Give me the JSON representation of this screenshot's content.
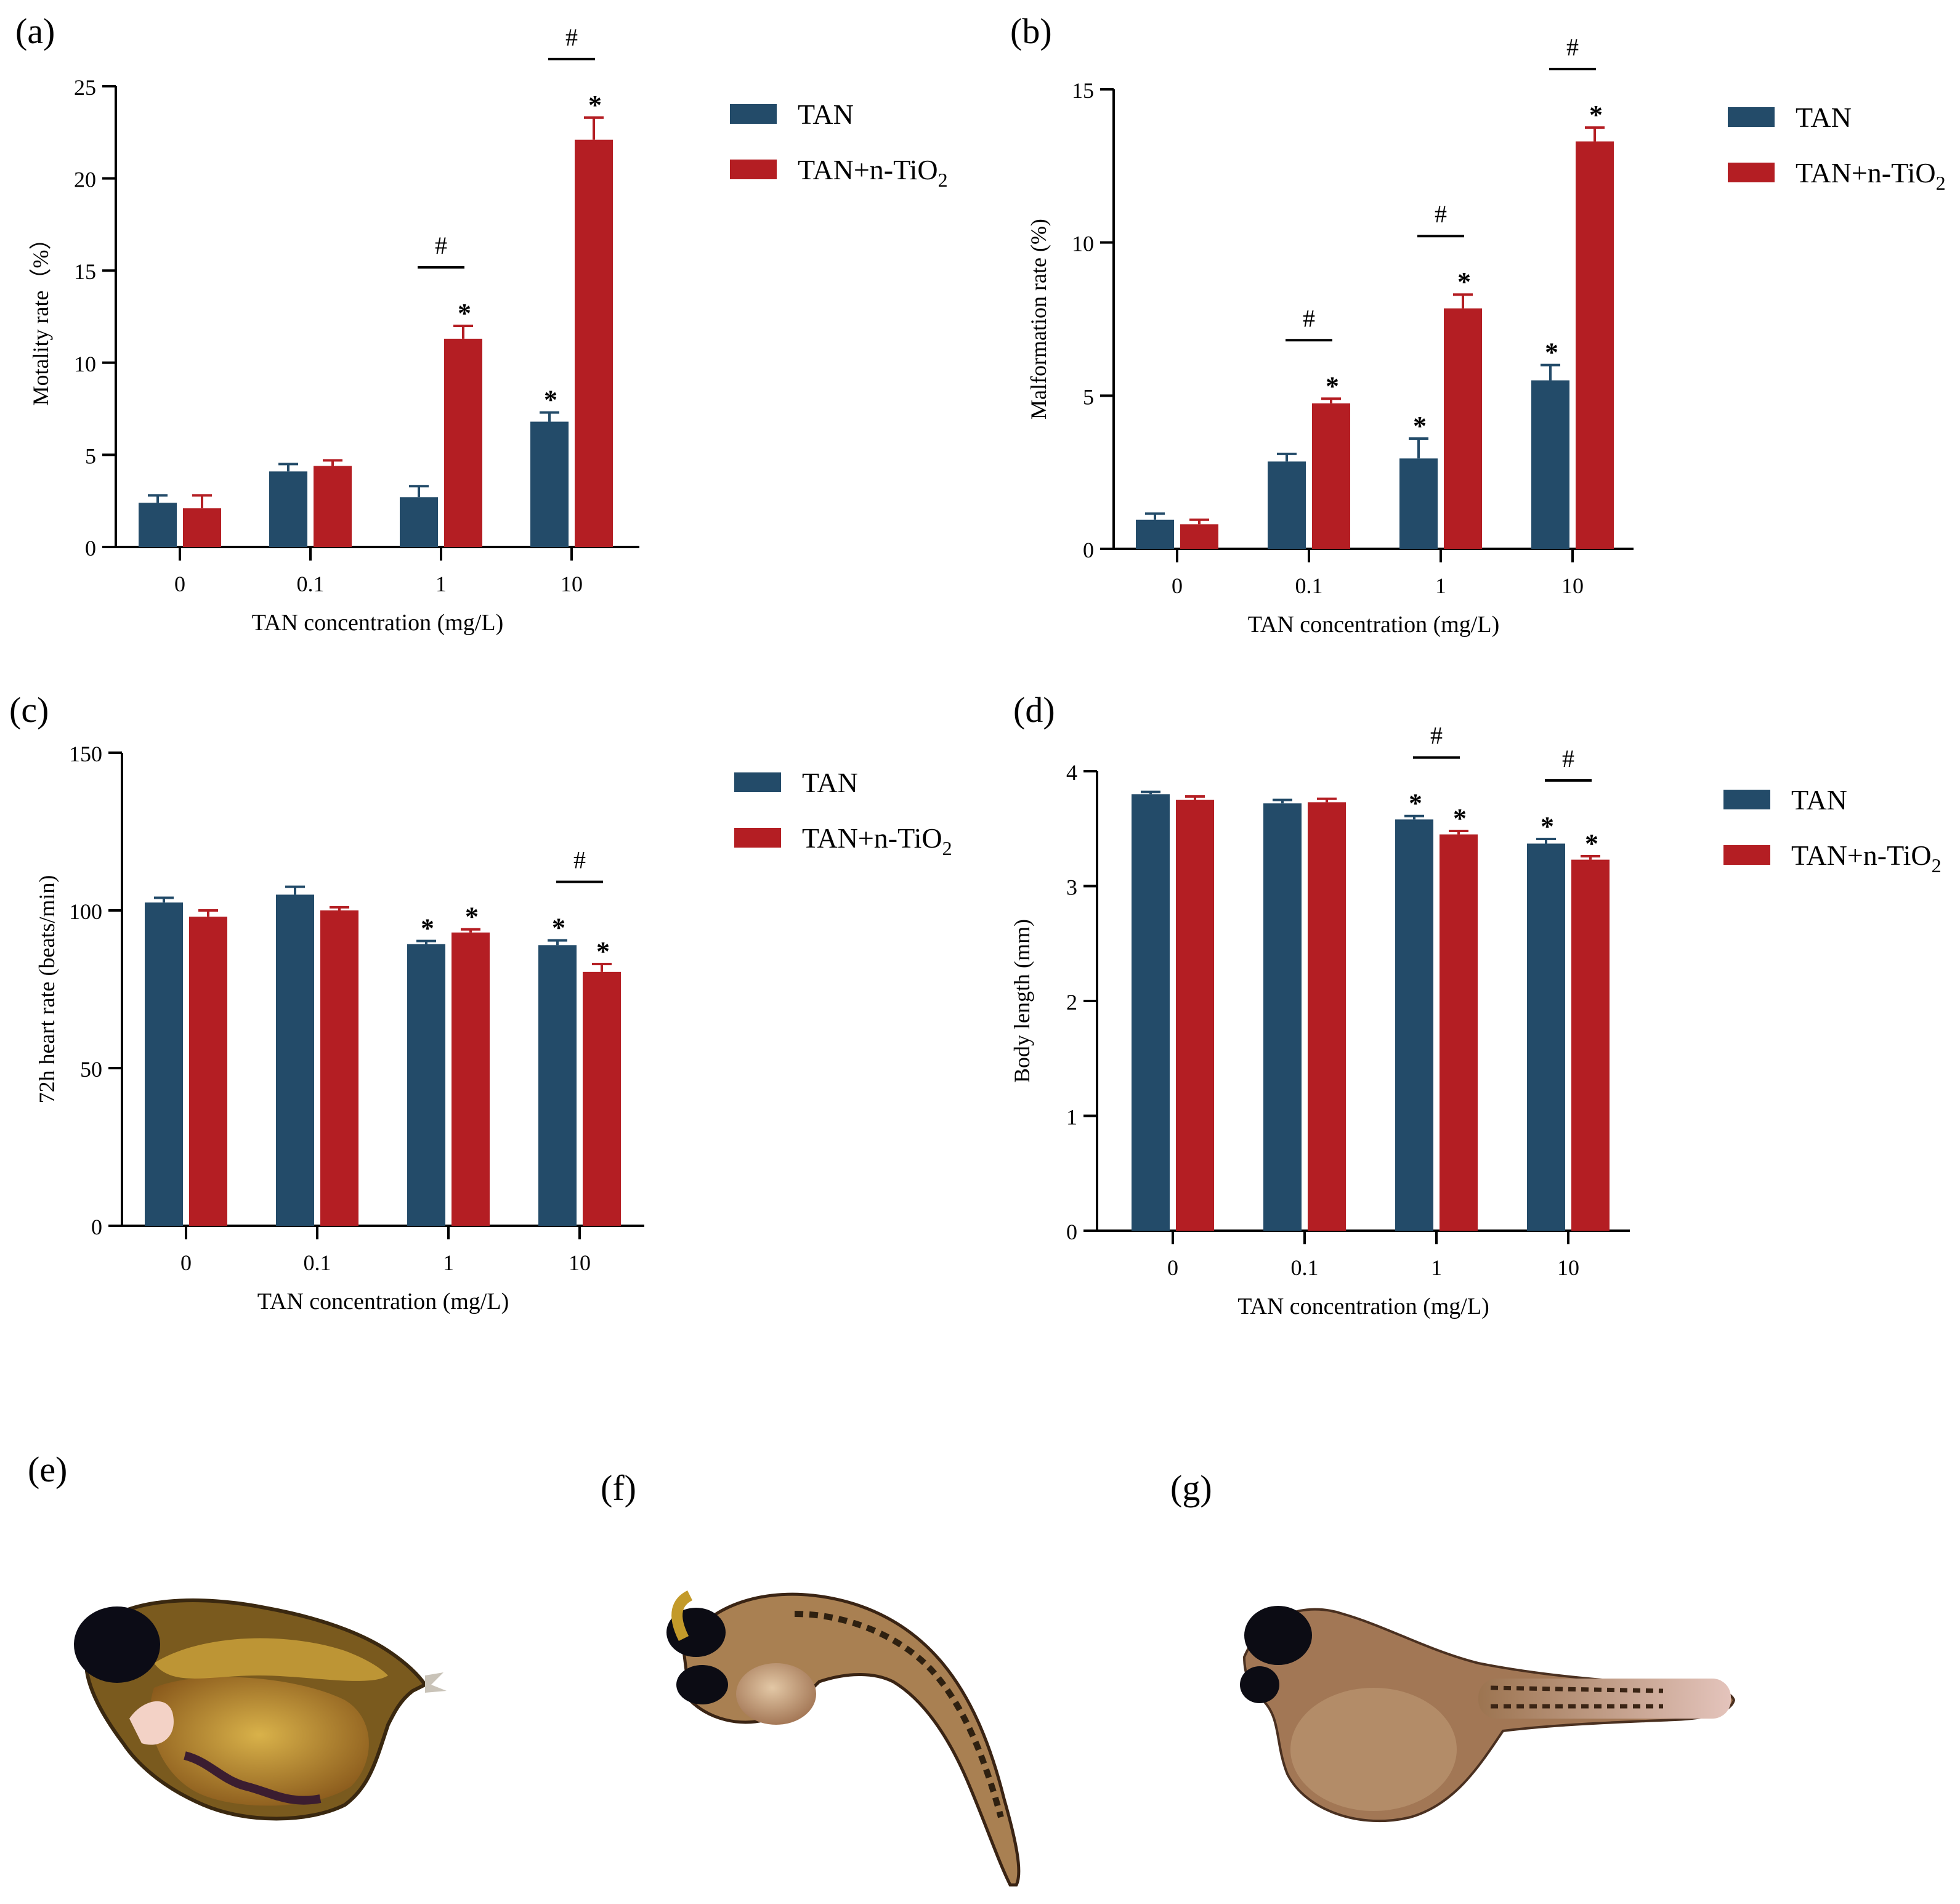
{
  "figure": {
    "colors": {
      "tan": "#234b69",
      "tan_tio2": "#b41e23",
      "axis": "#000000"
    },
    "photo_labels": [
      "(e)",
      "(f)",
      "(g)"
    ]
  },
  "chart_data": [
    {
      "panel": "(a)",
      "type": "bar",
      "xlabel": "TAN concentration (mg/L)",
      "ylabel": "Motality rate（%）",
      "ylim": [
        0,
        25
      ],
      "yticks": [
        "0",
        "5",
        "10",
        "15",
        "20",
        "25"
      ],
      "categories": [
        "0",
        "0.1",
        "1",
        "10"
      ],
      "legend": {
        "entries": [
          "TAN",
          "TAN+n-TiO",
          "2"
        ]
      },
      "series": [
        {
          "name": "TAN",
          "values": [
            2.4,
            4.1,
            2.7,
            6.8
          ],
          "errors": [
            0.4,
            0.4,
            0.6,
            0.5
          ],
          "star": [
            false,
            false,
            false,
            true
          ]
        },
        {
          "name": "TAN+n-TiO2",
          "values": [
            2.1,
            4.4,
            11.3,
            22.1
          ],
          "errors": [
            0.7,
            0.3,
            0.7,
            1.2
          ],
          "star": [
            false,
            false,
            true,
            true
          ]
        }
      ],
      "significance": {
        "symbol": "#",
        "categories": [
          2,
          3
        ]
      },
      "star_symbol": "*"
    },
    {
      "panel": "(b)",
      "type": "bar",
      "xlabel": "TAN concentration (mg/L)",
      "ylabel": "Malformation rate (%)",
      "ylim": [
        0,
        15
      ],
      "yticks": [
        "0",
        "5",
        "10",
        "15"
      ],
      "categories": [
        "0",
        "0.1",
        "1",
        "10"
      ],
      "legend": {
        "entries": [
          "TAN",
          "TAN+n-TiO",
          "2"
        ]
      },
      "series": [
        {
          "name": "TAN",
          "values": [
            0.95,
            2.85,
            2.95,
            5.5
          ],
          "errors": [
            0.2,
            0.25,
            0.65,
            0.5
          ],
          "star": [
            false,
            false,
            true,
            true
          ]
        },
        {
          "name": "TAN+n-TiO2",
          "values": [
            0.8,
            4.75,
            7.85,
            13.3
          ],
          "errors": [
            0.15,
            0.15,
            0.45,
            0.45
          ],
          "star": [
            false,
            true,
            true,
            true
          ]
        }
      ],
      "significance": {
        "symbol": "#",
        "categories": [
          1,
          2,
          3
        ]
      },
      "star_symbol": "*"
    },
    {
      "panel": "(c)",
      "type": "bar",
      "xlabel": "TAN concentration (mg/L)",
      "ylabel": "72h heart rate (beats/min)",
      "ylim": [
        0,
        150
      ],
      "yticks": [
        "0",
        "50",
        "100",
        "150"
      ],
      "categories": [
        "0",
        "0.1",
        "1",
        "10"
      ],
      "legend": {
        "entries": [
          "TAN",
          "TAN+n-TiO",
          "2"
        ]
      },
      "series": [
        {
          "name": "TAN",
          "values": [
            102.5,
            105,
            89.3,
            89
          ],
          "errors": [
            1.5,
            2.5,
            1,
            1.5
          ],
          "star": [
            false,
            false,
            true,
            true
          ]
        },
        {
          "name": "TAN+n-TiO2",
          "values": [
            98,
            100,
            93,
            80.5
          ],
          "errors": [
            2,
            1,
            1,
            2.5
          ],
          "star": [
            false,
            false,
            true,
            true
          ]
        }
      ],
      "significance": {
        "symbol": "#",
        "categories": [
          3
        ]
      },
      "star_symbol": "*"
    },
    {
      "panel": "(d)",
      "type": "bar",
      "xlabel": "TAN concentration (mg/L)",
      "ylabel": "Body length (mm)",
      "ylim": [
        0,
        4
      ],
      "yticks": [
        "0",
        "1",
        "2",
        "3",
        "4"
      ],
      "categories": [
        "0",
        "0.1",
        "1",
        "10"
      ],
      "legend": {
        "entries": [
          "TAN",
          "TAN+n-TiO",
          "2"
        ]
      },
      "series": [
        {
          "name": "TAN",
          "values": [
            3.8,
            3.72,
            3.58,
            3.37
          ],
          "errors": [
            0.02,
            0.03,
            0.03,
            0.04
          ],
          "star": [
            false,
            false,
            true,
            true
          ]
        },
        {
          "name": "TAN+n-TiO2",
          "values": [
            3.75,
            3.73,
            3.45,
            3.23
          ],
          "errors": [
            0.03,
            0.03,
            0.03,
            0.03
          ],
          "star": [
            false,
            false,
            true,
            true
          ]
        }
      ],
      "significance": {
        "symbol": "#",
        "categories": [
          2,
          3
        ]
      },
      "star_symbol": "*"
    }
  ]
}
